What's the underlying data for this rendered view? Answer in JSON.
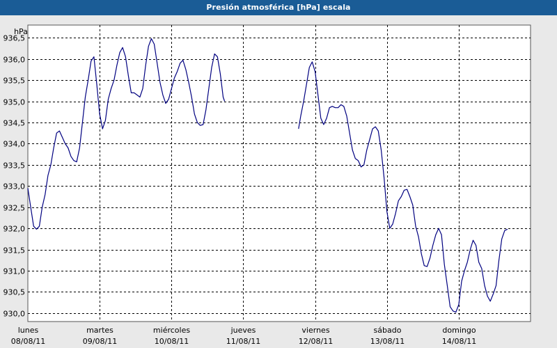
{
  "window": {
    "title": "Presión atmosférica [hPa] escala"
  },
  "colors": {
    "title_bar": "#1a5c96",
    "plot_bg": "#ffffff",
    "line": "#000080",
    "grid": "#000000",
    "background": "#e9e9e9"
  },
  "chart_data": {
    "type": "line",
    "title": "Presión atmosférica [hPa] escala",
    "ylabel": "hPa",
    "xlabel": "",
    "ylim": [
      929.8,
      936.8
    ],
    "yticks": [
      "930,0",
      "930,5",
      "931,0",
      "931,5",
      "932,0",
      "932,5",
      "933,0",
      "933,5",
      "934,0",
      "934,5",
      "935,0",
      "935,5",
      "936,0",
      "936,5"
    ],
    "ytick_values": [
      930.0,
      930.5,
      931.0,
      931.5,
      932.0,
      932.5,
      933.0,
      933.5,
      934.0,
      934.5,
      935.0,
      935.5,
      936.0,
      936.5
    ],
    "xlim": [
      0,
      7.0
    ],
    "xticks": [
      {
        "day": "lunes",
        "date": "08/08/11"
      },
      {
        "day": "martes",
        "date": "09/08/11"
      },
      {
        "day": "miércoles",
        "date": "10/08/11"
      },
      {
        "day": "jueves",
        "date": "11/08/11"
      },
      {
        "day": "viernes",
        "date": "12/08/11"
      },
      {
        "day": "sábado",
        "date": "13/08/11"
      },
      {
        "day": "domingo",
        "date": "14/08/11"
      }
    ],
    "grid": true,
    "series": [
      {
        "segments": [
          [
            [
              0.0,
              932.95
            ],
            [
              0.04,
              932.5
            ],
            [
              0.08,
              932.05
            ],
            [
              0.12,
              931.98
            ],
            [
              0.16,
              932.05
            ],
            [
              0.2,
              932.5
            ],
            [
              0.24,
              932.8
            ],
            [
              0.28,
              933.25
            ],
            [
              0.32,
              933.5
            ],
            [
              0.36,
              933.9
            ],
            [
              0.4,
              934.25
            ],
            [
              0.44,
              934.3
            ],
            [
              0.48,
              934.15
            ],
            [
              0.52,
              934.0
            ],
            [
              0.56,
              933.9
            ],
            [
              0.6,
              933.7
            ],
            [
              0.64,
              933.6
            ],
            [
              0.68,
              933.57
            ],
            [
              0.72,
              933.9
            ],
            [
              0.76,
              934.5
            ],
            [
              0.8,
              935.1
            ],
            [
              0.84,
              935.5
            ],
            [
              0.88,
              935.95
            ],
            [
              0.92,
              936.05
            ],
            [
              0.96,
              935.4
            ],
            [
              1.0,
              934.7
            ],
            [
              1.04,
              934.35
            ],
            [
              1.08,
              934.55
            ],
            [
              1.12,
              935.05
            ],
            [
              1.16,
              935.3
            ],
            [
              1.2,
              935.5
            ],
            [
              1.24,
              935.85
            ],
            [
              1.28,
              936.15
            ],
            [
              1.32,
              936.27
            ],
            [
              1.36,
              936.05
            ],
            [
              1.4,
              935.6
            ],
            [
              1.44,
              935.2
            ],
            [
              1.48,
              935.2
            ],
            [
              1.52,
              935.15
            ],
            [
              1.56,
              935.1
            ],
            [
              1.6,
              935.3
            ],
            [
              1.64,
              935.85
            ],
            [
              1.68,
              936.3
            ],
            [
              1.72,
              936.48
            ],
            [
              1.76,
              936.35
            ],
            [
              1.8,
              935.9
            ],
            [
              1.84,
              935.45
            ],
            [
              1.88,
              935.15
            ],
            [
              1.92,
              934.95
            ],
            [
              1.96,
              935.05
            ],
            [
              2.0,
              935.3
            ],
            [
              2.04,
              935.55
            ],
            [
              2.08,
              935.7
            ],
            [
              2.12,
              935.9
            ],
            [
              2.16,
              935.97
            ],
            [
              2.2,
              935.75
            ],
            [
              2.24,
              935.45
            ],
            [
              2.28,
              935.1
            ],
            [
              2.32,
              934.7
            ],
            [
              2.36,
              934.5
            ],
            [
              2.4,
              934.43
            ],
            [
              2.44,
              934.45
            ],
            [
              2.48,
              934.8
            ],
            [
              2.52,
              935.3
            ],
            [
              2.56,
              935.8
            ],
            [
              2.6,
              936.12
            ],
            [
              2.64,
              936.05
            ],
            [
              2.68,
              935.65
            ],
            [
              2.72,
              935.1
            ],
            [
              2.74,
              935.0
            ]
          ],
          [
            [
              3.77,
              934.35
            ],
            [
              3.8,
              934.65
            ],
            [
              3.84,
              935.0
            ],
            [
              3.88,
              935.4
            ],
            [
              3.92,
              935.8
            ],
            [
              3.96,
              935.93
            ],
            [
              4.0,
              935.7
            ],
            [
              4.04,
              935.15
            ],
            [
              4.08,
              934.6
            ],
            [
              4.12,
              934.45
            ],
            [
              4.16,
              934.6
            ],
            [
              4.2,
              934.85
            ],
            [
              4.24,
              934.88
            ],
            [
              4.28,
              934.85
            ],
            [
              4.32,
              934.85
            ],
            [
              4.36,
              934.92
            ],
            [
              4.4,
              934.88
            ],
            [
              4.44,
              934.65
            ],
            [
              4.48,
              934.25
            ],
            [
              4.52,
              933.85
            ],
            [
              4.56,
              933.65
            ],
            [
              4.6,
              933.6
            ],
            [
              4.64,
              933.45
            ],
            [
              4.68,
              933.5
            ],
            [
              4.72,
              933.85
            ],
            [
              4.76,
              934.1
            ],
            [
              4.8,
              934.35
            ],
            [
              4.84,
              934.4
            ],
            [
              4.88,
              934.3
            ],
            [
              4.92,
              933.85
            ],
            [
              4.96,
              933.2
            ],
            [
              5.0,
              932.4
            ],
            [
              5.04,
              932.0
            ],
            [
              5.08,
              932.1
            ],
            [
              5.12,
              932.35
            ],
            [
              5.16,
              932.65
            ],
            [
              5.2,
              932.75
            ],
            [
              5.24,
              932.9
            ],
            [
              5.28,
              932.92
            ],
            [
              5.32,
              932.75
            ],
            [
              5.36,
              932.55
            ],
            [
              5.4,
              932.05
            ],
            [
              5.44,
              931.8
            ],
            [
              5.48,
              931.4
            ],
            [
              5.52,
              931.12
            ],
            [
              5.56,
              931.1
            ],
            [
              5.6,
              931.3
            ],
            [
              5.64,
              931.6
            ],
            [
              5.68,
              931.85
            ],
            [
              5.72,
              932.0
            ],
            [
              5.76,
              931.85
            ],
            [
              5.8,
              931.15
            ],
            [
              5.84,
              930.65
            ],
            [
              5.88,
              930.15
            ],
            [
              5.92,
              930.05
            ],
            [
              5.96,
              930.02
            ],
            [
              6.0,
              930.2
            ],
            [
              6.04,
              930.75
            ],
            [
              6.08,
              931.0
            ],
            [
              6.12,
              931.2
            ],
            [
              6.16,
              931.5
            ],
            [
              6.2,
              931.72
            ],
            [
              6.24,
              931.6
            ],
            [
              6.28,
              931.2
            ],
            [
              6.32,
              931.05
            ],
            [
              6.36,
              930.65
            ],
            [
              6.4,
              930.4
            ],
            [
              6.44,
              930.28
            ],
            [
              6.48,
              930.45
            ],
            [
              6.52,
              930.65
            ],
            [
              6.56,
              931.25
            ],
            [
              6.6,
              931.75
            ],
            [
              6.64,
              931.95
            ],
            [
              6.68,
              931.98
            ]
          ]
        ]
      }
    ]
  }
}
